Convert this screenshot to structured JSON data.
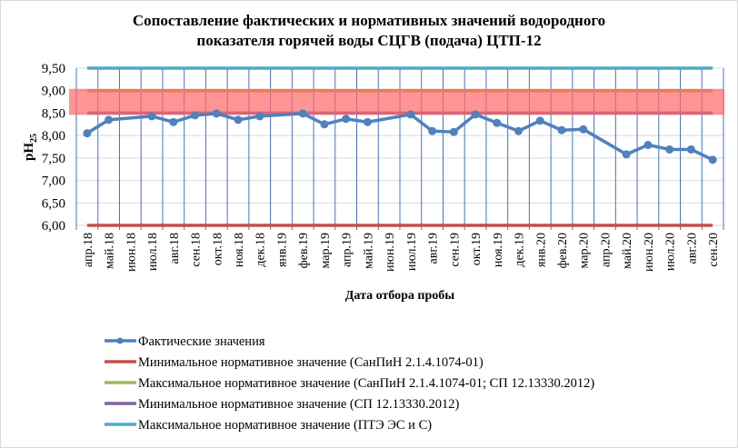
{
  "chart_data": {
    "type": "line",
    "title_lines": [
      "Сопоставление фактических и нормативных значений водородного",
      "показателя горячей воды СЦГВ (подача) ЦТП-12"
    ],
    "xlabel": "Дата отбора пробы",
    "ylabel": "pH",
    "ylabel_sub": "25",
    "ylim": [
      6.0,
      9.5
    ],
    "yticks": [
      6.0,
      6.5,
      7.0,
      7.5,
      8.0,
      8.5,
      9.0,
      9.5
    ],
    "ytick_labels": [
      "6,00",
      "6,50",
      "7,00",
      "7,50",
      "8,00",
      "8,50",
      "9,00",
      "9,50"
    ],
    "grid": true,
    "legend_position": "bottom",
    "categories": [
      "апр.18",
      "май.18",
      "июн.18",
      "июл.18",
      "авг.18",
      "сен.18",
      "окт.18",
      "ноя.18",
      "дек.18",
      "янв.19",
      "фев.19",
      "мар.19",
      "апр.19",
      "май.19",
      "июн.19",
      "июл.19",
      "авг.19",
      "сен.19",
      "окт.19",
      "ноя.19",
      "дек.19",
      "янв.20",
      "фев.20",
      "мар.20",
      "апр.20",
      "май.20",
      "июн.20",
      "июл.20",
      "авг.20",
      "сен.20"
    ],
    "series": [
      {
        "name": "Фактические значения",
        "color": "#4f81bd",
        "marker": true,
        "values": [
          8.05,
          8.35,
          null,
          8.43,
          8.3,
          8.45,
          8.49,
          8.35,
          8.43,
          null,
          8.49,
          8.25,
          8.37,
          8.3,
          null,
          8.47,
          8.1,
          8.08,
          8.47,
          8.28,
          8.1,
          8.33,
          8.12,
          8.14,
          null,
          7.58,
          7.79,
          7.69,
          7.69,
          7.46
        ]
      },
      {
        "name": "Минимальное нормативное значение (СанПиН 2.1.4.1074-01)",
        "color": "#c0504d",
        "constant": 6.0
      },
      {
        "name": "Максимальное нормативное значение (СанПиН 2.1.4.1074-01; СП 12.13330.2012)",
        "color": "#9bbb59",
        "constant": 9.0
      },
      {
        "name": "Минимальное нормативное значение (СП 12.13330.2012)",
        "color": "#8064a2",
        "constant": 8.5
      },
      {
        "name": "Максимальное нормативное значение (ПТЭ ЭС и С)",
        "color": "#4bacc6",
        "constant": 9.5
      }
    ],
    "highlight_band": {
      "from": 8.5,
      "to": 9.0,
      "color": "#ff6666"
    }
  }
}
